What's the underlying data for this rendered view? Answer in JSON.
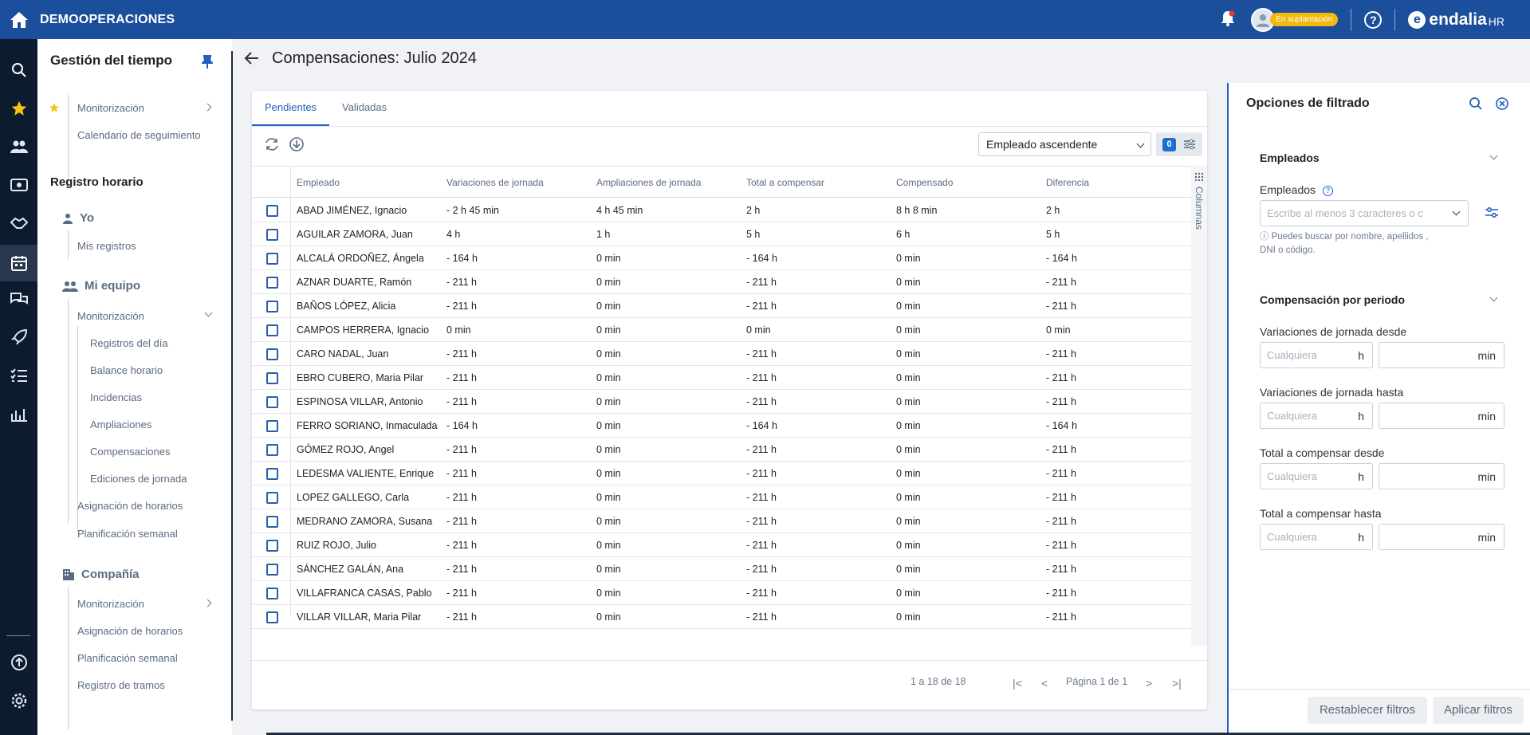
{
  "topbar": {
    "org_name": "DEMOOPERACIONES",
    "impersonation_badge": "En suplantación",
    "logo_text": "endalia",
    "logo_suffix": "HR"
  },
  "leftnav": {
    "title": "Gestión del tiempo",
    "favorites": [
      "Monitorización",
      "Calendario de seguimiento"
    ],
    "registro_title": "Registro horario",
    "yo_label": "Yo",
    "yo_items": [
      "Mis registros"
    ],
    "equipo_label": "Mi equipo",
    "equipo_monitor": "Monitorización",
    "equipo_subitems": [
      "Registros del día",
      "Balance horario",
      "Incidencias",
      "Ampliaciones",
      "Compensaciones",
      "Ediciones de jornada"
    ],
    "equipo_items": [
      "Asignación de horarios",
      "Planificación semanal"
    ],
    "compania_label": "Compañía",
    "compania_items": [
      "Monitorización",
      "Asignación de horarios",
      "Planificación semanal",
      "Registro de tramos"
    ]
  },
  "main": {
    "page_title": "Compensaciones: Julio 2024",
    "tabs": [
      "Pendientes",
      "Validadas"
    ],
    "sort_value": "Empleado ascendente",
    "filter_count": "0",
    "columns_label": "Columnas",
    "headers": [
      "Empleado",
      "Variaciones de jornada",
      "Ampliaciones de jornada",
      "Total a compensar",
      "Compensado",
      "Diferencia"
    ],
    "rows": [
      [
        "ABAD JIMÉNEZ, Ignacio",
        "- 2 h 45 min",
        "4 h 45 min",
        "2 h",
        "8 h 8 min",
        "2 h"
      ],
      [
        "AGUILAR ZAMORA, Juan",
        "4 h",
        "1 h",
        "5 h",
        "6 h",
        "5 h"
      ],
      [
        "ALCALÁ ORDOÑEZ, Ángela",
        "- 164 h",
        "0 min",
        "- 164 h",
        "0 min",
        "- 164 h"
      ],
      [
        "AZNAR DUARTE, Ramón",
        "- 211 h",
        "0 min",
        "- 211 h",
        "0 min",
        "- 211 h"
      ],
      [
        "BAÑOS LÓPEZ, Alicia",
        "- 211 h",
        "0 min",
        "- 211 h",
        "0 min",
        "- 211 h"
      ],
      [
        "CAMPOS HERRERA, Ignacio",
        "0 min",
        "0 min",
        "0 min",
        "0 min",
        "0 min"
      ],
      [
        "CARO NADAL, Juan",
        "- 211 h",
        "0 min",
        "- 211 h",
        "0 min",
        "- 211 h"
      ],
      [
        "EBRO CUBERO, Maria Pilar",
        "- 211 h",
        "0 min",
        "- 211 h",
        "0 min",
        "- 211 h"
      ],
      [
        "ESPINOSA VILLAR, Antonio",
        "- 211 h",
        "0 min",
        "- 211 h",
        "0 min",
        "- 211 h"
      ],
      [
        "FERRO SORIANO, Inmaculada",
        "- 164 h",
        "0 min",
        "- 164 h",
        "0 min",
        "- 164 h"
      ],
      [
        "GÓMEZ ROJO, Angel",
        "- 211 h",
        "0 min",
        "- 211 h",
        "0 min",
        "- 211 h"
      ],
      [
        "LEDESMA VALIENTE, Enrique",
        "- 211 h",
        "0 min",
        "- 211 h",
        "0 min",
        "- 211 h"
      ],
      [
        "LOPEZ GALLEGO, Carla",
        "- 211 h",
        "0 min",
        "- 211 h",
        "0 min",
        "- 211 h"
      ],
      [
        "MEDRANO ZAMORA, Susana",
        "- 211 h",
        "0 min",
        "- 211 h",
        "0 min",
        "- 211 h"
      ],
      [
        "RUIZ ROJO, Julio",
        "- 211 h",
        "0 min",
        "- 211 h",
        "0 min",
        "- 211 h"
      ],
      [
        "SÁNCHEZ GALÁN, Ana",
        "- 211 h",
        "0 min",
        "- 211 h",
        "0 min",
        "- 211 h"
      ],
      [
        "VILLAFRANCA CASAS, Pablo",
        "- 211 h",
        "0 min",
        "- 211 h",
        "0 min",
        "- 211 h"
      ],
      [
        "VILLAR VILLAR, Maria Pilar",
        "- 211 h",
        "0 min",
        "- 211 h",
        "0 min",
        "- 211 h"
      ]
    ],
    "pagination_range": "1 a 18 de 18",
    "pagination_page": "Página 1 de 1"
  },
  "filters": {
    "title": "Opciones de filtrado",
    "section_employees": "Empleados",
    "employees_label": "Empleados",
    "employees_placeholder": "Escribe al menos 3 caracteres o c",
    "employees_help": "ⓘ Puedes buscar por nombre, apellidos , DNI o código.",
    "section_comp": "Compensación por periodo",
    "range_labels": [
      "Variaciones de jornada desde",
      "Variaciones de jornada hasta",
      "Total a compensar desde",
      "Total a compensar hasta"
    ],
    "hours_placeholder": "Cualquiera",
    "unit_h": "h",
    "unit_min": "min",
    "reset_button": "Restablecer filtros",
    "apply_button": "Aplicar filtros"
  },
  "colors": {
    "topbar": "#1b4f9c",
    "rail": "#0d1b2e",
    "accent": "#1f5fbf",
    "badge": "#f0b90b"
  }
}
